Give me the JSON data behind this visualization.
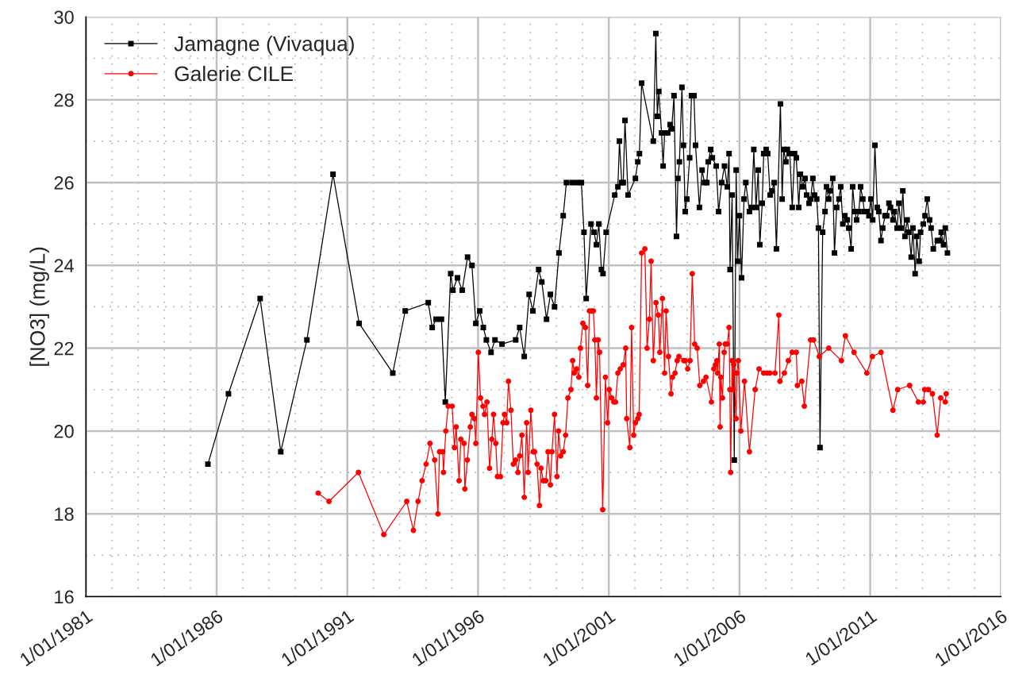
{
  "chart_data": {
    "type": "line",
    "ylabel": "[NO3] (mg/L)",
    "xlim": [
      "1981-01-01",
      "2016-01-01"
    ],
    "xticks": [
      {
        "value": "1981-01-01",
        "label": "1/01/1981"
      },
      {
        "value": "1986-01-01",
        "label": "1/01/1986"
      },
      {
        "value": "1991-01-01",
        "label": "1/01/1991"
      },
      {
        "value": "1996-01-01",
        "label": "1/01/1996"
      },
      {
        "value": "2001-01-01",
        "label": "1/01/2001"
      },
      {
        "value": "2006-01-01",
        "label": "1/01/2006"
      },
      {
        "value": "2011-01-01",
        "label": "1/01/2011"
      },
      {
        "value": "2016-01-01",
        "label": "1/01/2016"
      }
    ],
    "ylim": [
      16,
      30
    ],
    "yticks": [
      16,
      18,
      20,
      22,
      24,
      26,
      28,
      30
    ],
    "grid": true,
    "legend": "top left",
    "line_style": "solid",
    "series": [
      {
        "name": "Jamagne (Vivaqua)",
        "color": "#000000",
        "marker": "square",
        "x": [
          "1985-09-01",
          "1986-06-15",
          "1987-09-01",
          "1988-06-15",
          "1989-06-15",
          "1990-06-15",
          "1991-06-15",
          "1992-09-27",
          "1993-03-20",
          "1994-02-05",
          "1994-04-01",
          "1994-05-25",
          "1994-08-08",
          "1994-10-01",
          "1994-12-15",
          "1995-01-15",
          "1995-03-20",
          "1995-05-25",
          "1995-08-08",
          "1995-10-08",
          "1995-12-01",
          "1996-01-25",
          "1996-03-15",
          "1996-04-27",
          "1996-07-01",
          "1996-08-25",
          "1996-12-01",
          "1997-06-10",
          "1997-08-05",
          "1997-10-08",
          "1997-12-15",
          "1998-02-05",
          "1998-04-27",
          "1998-06-10",
          "1998-08-15",
          "1998-10-08",
          "1998-12-05",
          "1999-02-05",
          "1999-04-05",
          "1999-05-20",
          "1999-08-08",
          "1999-10-20",
          "1999-12-15",
          "2000-01-20",
          "2000-02-20",
          "2000-04-27",
          "2000-06-10",
          "2000-07-12",
          "2000-08-15",
          "2000-09-20",
          "2000-10-12",
          "2000-11-25",
          "2001-03-25",
          "2001-05-08",
          "2001-05-30",
          "2001-07-01",
          "2001-07-22",
          "2001-08-15",
          "2001-09-27",
          "2002-01-08",
          "2002-02-10",
          "2002-03-05",
          "2002-04-05",
          "2002-09-15",
          "2002-10-20",
          "2002-11-10",
          "2002-12-01",
          "2003-01-08",
          "2003-01-30",
          "2003-02-20",
          "2003-04-05",
          "2003-05-08",
          "2003-05-30",
          "2003-07-01",
          "2003-08-05",
          "2003-08-25",
          "2003-09-15",
          "2003-10-20",
          "2003-11-10",
          "2003-12-05",
          "2003-12-28",
          "2004-02-05",
          "2004-03-01",
          "2004-04-05",
          "2004-04-27",
          "2004-06-20",
          "2004-07-27",
          "2004-08-30",
          "2004-10-01",
          "2004-10-22",
          "2004-11-25",
          "2004-12-18",
          "2005-02-10",
          "2005-03-15",
          "2005-04-27",
          "2005-06-05",
          "2005-07-15",
          "2005-08-08",
          "2005-08-22",
          "2005-09-20",
          "2005-10-20",
          "2005-11-15",
          "2005-12-05",
          "2006-01-01",
          "2006-01-30",
          "2006-03-05",
          "2006-03-30",
          "2006-05-20",
          "2006-06-20",
          "2006-07-20",
          "2006-08-20",
          "2006-09-20",
          "2006-10-12",
          "2006-11-15",
          "2006-12-05",
          "2007-01-08",
          "2007-01-30",
          "2007-03-05",
          "2007-03-30",
          "2007-05-01",
          "2007-06-01",
          "2007-07-27",
          "2007-08-20",
          "2007-09-10",
          "2007-10-12",
          "2007-11-01",
          "2007-12-05",
          "2008-01-08",
          "2008-02-10",
          "2008-03-05",
          "2008-04-08",
          "2008-05-01",
          "2008-06-01",
          "2008-07-05",
          "2008-07-27",
          "2008-08-30",
          "2008-09-20",
          "2008-10-22",
          "2008-11-15",
          "2008-12-15",
          "2009-01-08",
          "2009-01-30",
          "2009-03-08",
          "2009-04-10",
          "2009-05-01",
          "2009-06-01",
          "2009-06-25",
          "2009-07-27",
          "2009-08-20",
          "2009-09-20",
          "2009-10-22",
          "2009-11-15",
          "2009-12-15",
          "2010-01-12",
          "2010-02-15",
          "2010-03-08",
          "2010-04-10",
          "2010-05-01",
          "2010-06-01",
          "2010-06-25",
          "2010-07-27",
          "2010-08-20",
          "2010-09-20",
          "2010-10-12",
          "2010-11-15",
          "2010-12-15",
          "2011-01-12",
          "2011-02-05",
          "2011-03-08",
          "2011-04-10",
          "2011-05-01",
          "2011-06-01",
          "2011-06-25",
          "2011-07-27",
          "2011-08-20",
          "2011-09-20",
          "2011-10-12",
          "2011-11-15",
          "2011-12-05",
          "2012-01-12",
          "2012-02-05",
          "2012-03-08",
          "2012-04-01",
          "2012-05-01",
          "2012-06-01",
          "2012-06-25",
          "2012-07-27",
          "2012-08-20",
          "2012-09-20",
          "2012-10-12",
          "2012-11-15",
          "2012-12-05",
          "2013-01-12",
          "2013-02-05",
          "2013-03-08",
          "2013-04-10",
          "2013-05-01",
          "2013-06-01",
          "2013-07-27",
          "2013-08-30",
          "2013-09-20",
          "2013-10-22",
          "2013-11-15",
          "2013-12-15"
        ],
        "values": [
          19.2,
          20.9,
          23.2,
          19.5,
          22.2,
          26.2,
          22.6,
          21.4,
          22.9,
          23.1,
          22.5,
          22.7,
          22.7,
          20.7,
          23.8,
          23.4,
          23.7,
          23.4,
          24.2,
          24.0,
          22.6,
          22.9,
          22.5,
          22.2,
          21.9,
          22.2,
          22.1,
          22.2,
          22.5,
          21.8,
          23.3,
          22.9,
          23.9,
          23.6,
          22.7,
          23.3,
          23.0,
          24.3,
          25.2,
          26.0,
          26.0,
          26.0,
          26.0,
          24.8,
          23.2,
          25.0,
          24.8,
          24.5,
          25.0,
          23.9,
          23.8,
          24.8,
          25.7,
          25.9,
          27.0,
          26.0,
          26.0,
          27.5,
          25.7,
          26.1,
          26.5,
          26.7,
          28.4,
          27.0,
          29.6,
          27.6,
          28.2,
          27.2,
          26.4,
          27.2,
          27.2,
          27.4,
          27.3,
          28.1,
          24.7,
          26.1,
          26.5,
          28.3,
          26.9,
          25.3,
          25.6,
          26.6,
          28.1,
          28.1,
          26.9,
          25.4,
          26.3,
          26.0,
          26.0,
          26.5,
          26.8,
          26.6,
          26.4,
          25.3,
          26.0,
          26.4,
          25.9,
          26.7,
          23.9,
          25.7,
          19.3,
          26.3,
          24.1,
          25.2,
          23.7,
          25.6,
          26.0,
          25.3,
          25.4,
          26.8,
          25.4,
          26.3,
          24.5,
          25.5,
          26.7,
          26.8,
          26.7,
          25.7,
          25.8,
          26.0,
          24.4,
          27.9,
          25.6,
          26.8,
          26.5,
          26.8,
          26.7,
          25.4,
          26.7,
          26.6,
          25.4,
          26.2,
          25.9,
          26.1,
          25.7,
          25.5,
          25.6,
          26.1,
          25.7,
          25.6,
          24.9,
          19.6,
          24.8,
          25.3,
          25.9,
          25.6,
          25.8,
          26.1,
          24.3,
          25.4,
          25.6,
          25.9,
          25.0,
          25.2,
          25.1,
          24.9,
          24.4,
          25.9,
          25.3,
          25.1,
          25.3,
          25.9,
          25.6,
          25.3,
          25.3,
          25.2,
          25.6,
          25.1,
          26.9,
          25.4,
          25.3,
          24.6,
          24.9,
          25.2,
          25.2,
          25.5,
          25.4,
          25.1,
          25.3,
          24.9,
          25.5,
          24.9,
          25.8,
          24.7,
          25.1,
          24.8,
          24.2,
          24.9,
          23.8,
          24.7,
          24.1,
          24.8,
          25.0,
          25.2,
          25.6,
          25.1,
          24.9,
          24.4,
          24.6,
          24.6,
          24.8,
          24.5,
          24.9,
          24.3
        ]
      },
      {
        "name": "Galerie CILE",
        "color": "#ff0000",
        "marker": "circle",
        "x": [
          "1989-11-20",
          "1990-04-20",
          "1991-06-05",
          "1992-05-25",
          "1993-04-10",
          "1993-07-12",
          "1993-09-15",
          "1993-11-10",
          "1994-01-05",
          "1994-03-01",
          "1994-05-05",
          "1994-06-20",
          "1994-07-12",
          "1994-08-25",
          "1994-09-05",
          "1994-10-08",
          "1994-11-10",
          "1995-01-05",
          "1995-02-05",
          "1995-03-01",
          "1995-04-12",
          "1995-05-05",
          "1995-06-20",
          "1995-07-01",
          "1995-08-05",
          "1995-09-15",
          "1995-10-08",
          "1995-11-10",
          "1995-12-01",
          "1996-01-05",
          "1996-02-05",
          "1996-03-10",
          "1996-04-01",
          "1996-05-05",
          "1996-06-10",
          "1996-07-12",
          "1996-08-05",
          "1996-09-05",
          "1996-09-28",
          "1996-11-10",
          "1996-12-15",
          "1997-01-05",
          "1997-02-05",
          "1997-03-01",
          "1997-04-05",
          "1997-05-08",
          "1997-06-10",
          "1997-07-12",
          "1997-08-05",
          "1997-09-05",
          "1997-10-08",
          "1997-11-10",
          "1997-12-01",
          "1998-01-08",
          "1998-02-10",
          "1998-03-01",
          "1998-04-05",
          "1998-05-08",
          "1998-05-30",
          "1998-07-01",
          "1998-08-05",
          "1998-09-05",
          "1998-10-08",
          "1998-10-30",
          "1998-12-05",
          "1999-01-08",
          "1999-01-30",
          "1999-03-01",
          "1999-04-05",
          "1999-05-08",
          "1999-06-10",
          "1999-07-22",
          "1999-08-15",
          "1999-09-05",
          "1999-10-08",
          "1999-11-10",
          "1999-12-01",
          "2000-01-05",
          "2000-02-10",
          "2000-03-12",
          "2000-04-05",
          "2000-05-08",
          "2000-05-30",
          "2000-06-20",
          "2000-07-12",
          "2000-08-05",
          "2000-08-25",
          "2000-10-08",
          "2000-11-15",
          "2000-12-15",
          "2001-01-08",
          "2001-02-10",
          "2001-03-12",
          "2001-04-05",
          "2001-05-08",
          "2001-06-10",
          "2001-07-22",
          "2001-08-25",
          "2001-09-08",
          "2001-10-22",
          "2001-11-15",
          "2001-12-15",
          "2002-01-08",
          "2002-02-10",
          "2002-03-01",
          "2002-04-05",
          "2002-05-20",
          "2002-06-20",
          "2002-07-22",
          "2002-08-15",
          "2002-09-15",
          "2002-10-22",
          "2002-11-25",
          "2002-12-15",
          "2003-01-20",
          "2003-02-20",
          "2003-03-12",
          "2003-04-15",
          "2003-05-20",
          "2003-06-10",
          "2003-07-15",
          "2003-08-15",
          "2003-09-08",
          "2003-11-15",
          "2003-12-05",
          "2004-01-08",
          "2004-02-10",
          "2004-03-12",
          "2004-04-15",
          "2004-05-20",
          "2004-06-25",
          "2004-08-15",
          "2004-09-20",
          "2004-12-05",
          "2005-01-08",
          "2005-01-30",
          "2005-02-20",
          "2005-03-01",
          "2005-03-25",
          "2005-04-05",
          "2005-04-15",
          "2005-05-08",
          "2005-06-01",
          "2005-06-15",
          "2005-07-15",
          "2005-08-08",
          "2005-08-20",
          "2005-08-30",
          "2005-09-20",
          "2005-10-01",
          "2005-10-12",
          "2005-11-15",
          "2005-11-25",
          "2005-12-15",
          "2006-01-20",
          "2006-03-12",
          "2006-05-20",
          "2006-08-08",
          "2006-10-01",
          "2006-12-05",
          "2007-01-20",
          "2007-03-01",
          "2007-05-12",
          "2007-07-05",
          "2007-07-20",
          "2007-09-20",
          "2007-11-15",
          "2008-01-08",
          "2008-03-05",
          "2008-03-20",
          "2008-05-20",
          "2008-06-25",
          "2008-09-20",
          "2008-11-01",
          "2009-01-20",
          "2009-06-01",
          "2009-11-25",
          "2010-01-20",
          "2010-05-20",
          "2010-11-15",
          "2011-02-01",
          "2011-06-01",
          "2011-11-15",
          "2012-01-20",
          "2012-07-05",
          "2012-11-05",
          "2013-01-12",
          "2013-02-01",
          "2013-03-25",
          "2013-05-20",
          "2013-07-25",
          "2013-09-12",
          "2013-11-15",
          "2013-11-28"
        ],
        "values": [
          18.5,
          18.3,
          19.0,
          17.5,
          18.3,
          17.6,
          18.3,
          18.8,
          19.2,
          19.7,
          19.3,
          18.0,
          19.5,
          19.5,
          19.0,
          20.0,
          20.6,
          20.6,
          19.6,
          20.1,
          18.8,
          19.8,
          19.7,
          18.6,
          19.3,
          20.1,
          20.4,
          20.3,
          19.7,
          21.9,
          20.8,
          20.6,
          20.4,
          20.7,
          19.1,
          19.8,
          20.4,
          19.7,
          18.9,
          18.9,
          20.2,
          20.4,
          20.2,
          21.2,
          20.5,
          19.2,
          19.3,
          19.0,
          19.4,
          19.9,
          18.4,
          20.2,
          19.0,
          20.5,
          19.5,
          19.5,
          19.2,
          18.2,
          19.1,
          18.8,
          18.8,
          19.5,
          18.7,
          19.5,
          20.4,
          18.9,
          20.0,
          19.4,
          19.5,
          19.9,
          20.8,
          21.0,
          21.7,
          21.4,
          21.5,
          21.3,
          22.0,
          22.6,
          22.5,
          21.1,
          22.9,
          22.9,
          22.9,
          22.2,
          20.8,
          22.2,
          21.9,
          18.1,
          21.3,
          20.2,
          21.0,
          20.8,
          20.7,
          20.7,
          21.4,
          21.5,
          21.6,
          22.0,
          20.3,
          19.6,
          22.5,
          19.9,
          20.2,
          20.3,
          20.4,
          24.3,
          24.4,
          22.0,
          22.7,
          24.1,
          21.7,
          23.1,
          22.8,
          21.9,
          23.2,
          21.4,
          22.9,
          21.8,
          20.9,
          21.3,
          21.4,
          21.7,
          21.8,
          21.7,
          21.7,
          21.5,
          21.7,
          23.8,
          22.1,
          22.0,
          21.1,
          21.2,
          21.3,
          20.7,
          21.5,
          21.6,
          21.7,
          21.4,
          22.1,
          20.1,
          21.3,
          20.8,
          21.9,
          22.1,
          22.1,
          22.5,
          21.0,
          19.0,
          21.7,
          21.0,
          21.6,
          20.3,
          21.4,
          21.7,
          20.0,
          21.2,
          19.5,
          21.0,
          21.5,
          21.4,
          21.4,
          21.4,
          21.4,
          22.8,
          21.2,
          21.4,
          21.7,
          21.9,
          21.9,
          21.1,
          21.2,
          20.6,
          22.2,
          22.2,
          21.8,
          22.0,
          21.7,
          22.3,
          21.9,
          21.4,
          21.8,
          21.9,
          20.5,
          21.0,
          21.1,
          20.7,
          20.7,
          21.0,
          21.0,
          20.9,
          19.9,
          20.8,
          20.7,
          20.9
        ]
      }
    ]
  }
}
